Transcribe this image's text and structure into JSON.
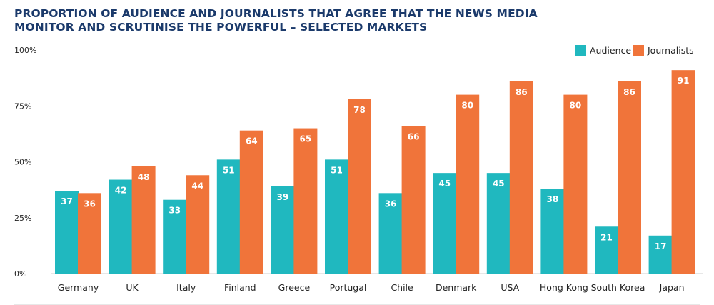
{
  "chart_data": {
    "type": "bar",
    "title_line1": "PROPORTION OF AUDIENCE AND JOURNALISTS THAT AGREE THAT THE NEWS MEDIA",
    "title_line2": "MONITOR AND SCRUTINISE THE POWERFUL – SELECTED MARKETS",
    "categories": [
      "Germany",
      "UK",
      "Italy",
      "Finland",
      "Greece",
      "Portugal",
      "Chile",
      "Denmark",
      "USA",
      "Hong Kong",
      "South Korea",
      "Japan"
    ],
    "series": [
      {
        "name": "Audience",
        "color": "#20b8bf",
        "values": [
          37,
          42,
          33,
          51,
          39,
          51,
          36,
          45,
          45,
          38,
          21,
          17
        ]
      },
      {
        "name": "Journalists",
        "color": "#f0743a",
        "values": [
          36,
          48,
          44,
          64,
          65,
          78,
          66,
          80,
          86,
          80,
          86,
          91
        ]
      }
    ],
    "y_ticks": [
      {
        "value": 0,
        "label": "0%"
      },
      {
        "value": 25,
        "label": "25%"
      },
      {
        "value": 50,
        "label": "50%"
      },
      {
        "value": 75,
        "label": "75%"
      },
      {
        "value": 100,
        "label": "100%"
      }
    ],
    "ylim": [
      0,
      100
    ],
    "legend_position": "top-right",
    "grid": false
  }
}
